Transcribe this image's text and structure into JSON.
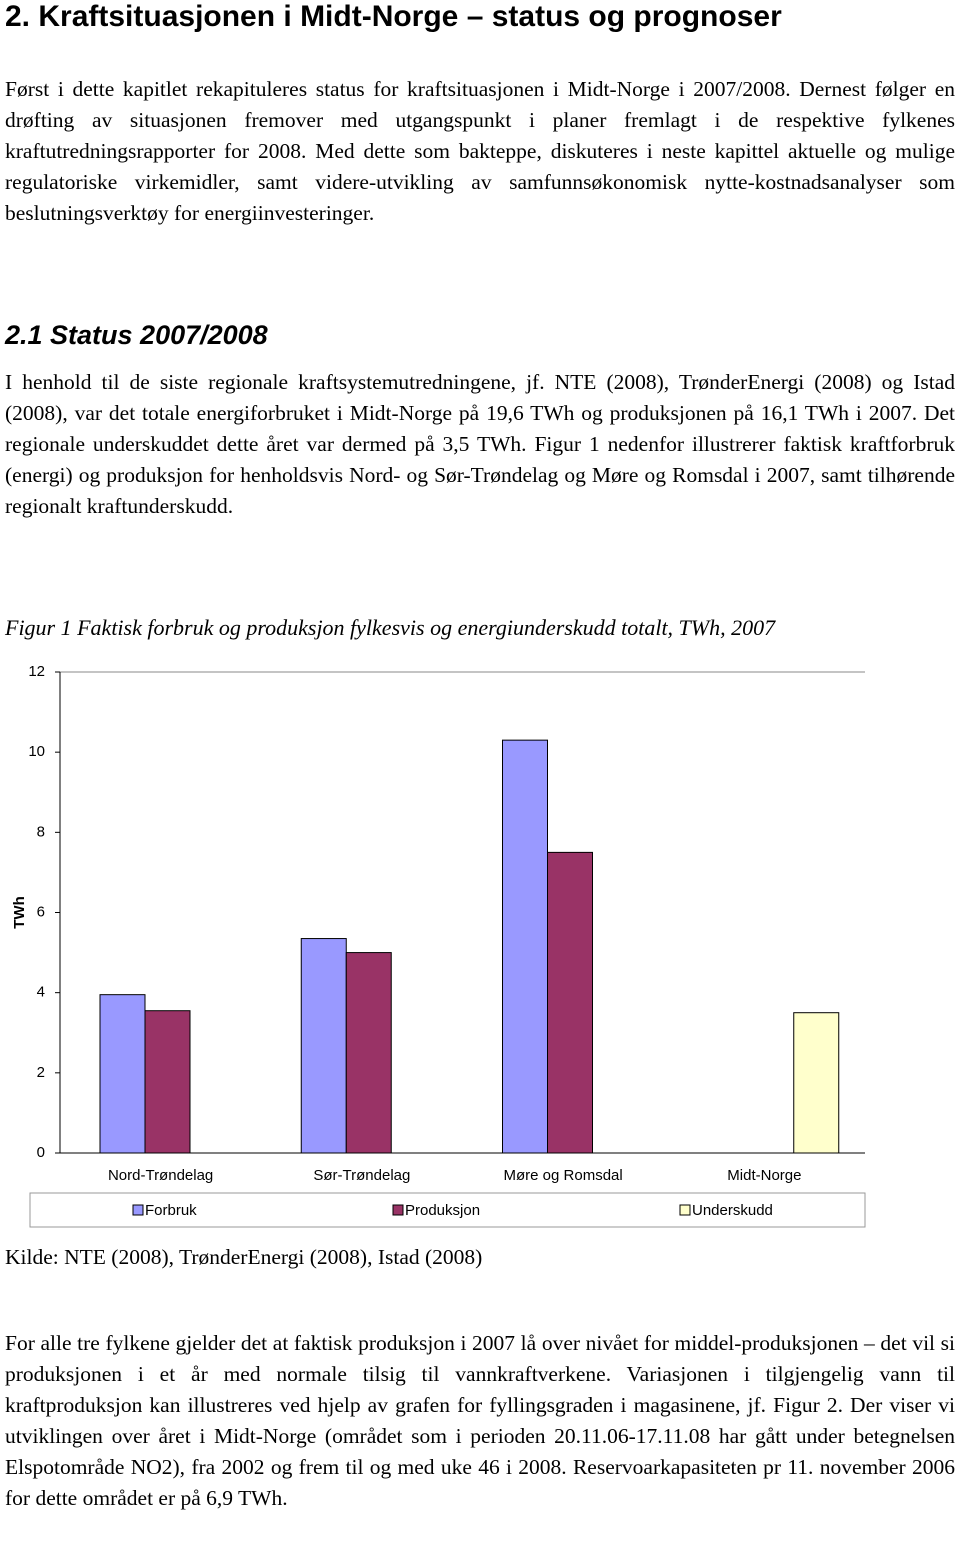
{
  "heading": "2. Kraftsituasjonen i Midt-Norge – status og prognoser",
  "intro": "Først i dette kapitlet rekapituleres status for kraftsituasjonen i Midt-Norge i 2007/2008. Dernest følger en drøfting av situasjonen fremover med utgangspunkt i planer fremlagt i de respektive fylkenes kraftutredningsrapporter for 2008. Med dette som bakteppe, diskuteres i neste kapittel aktuelle og mulige regulatoriske virkemidler, samt videre-utvikling av samfunnsøkonomisk nytte-kostnadsanalyser som beslutningsverktøy for energiinvesteringer.",
  "section_heading": "2.1 Status 2007/2008",
  "section_text": "I henhold til de siste regionale kraftsystemutredningene, jf. NTE (2008), TrønderEnergi (2008) og Istad (2008), var det totale energiforbruket i Midt-Norge på 19,6 TWh og produksjonen på 16,1 TWh i 2007. Det regionale underskuddet dette året var dermed på 3,5 TWh. Figur 1 nedenfor illustrerer faktisk kraftforbruk (energi) og produksjon for henholdsvis Nord- og Sør-Trøndelag og Møre og Romsdal i 2007, samt tilhørende regionalt kraftunderskudd.",
  "figure_caption": "Figur 1 Faktisk forbruk og produksjon fylkesvis og energiunderskudd totalt, TWh, 2007",
  "chart_data": {
    "type": "bar",
    "y_label": "TWh",
    "categories": [
      "Nord-Trøndelag",
      "Sør-Trøndelag",
      "Møre og Romsdal",
      "Midt-Norge"
    ],
    "series": [
      {
        "name": "Forbruk",
        "color": "#9999ff",
        "values": [
          3.95,
          5.35,
          10.3,
          null
        ]
      },
      {
        "name": "Produksjon",
        "color": "#993366",
        "values": [
          3.55,
          5.0,
          7.5,
          null
        ]
      },
      {
        "name": "Underskudd",
        "color": "#ffffcc",
        "values": [
          null,
          null,
          null,
          3.5
        ]
      }
    ],
    "ylim": [
      0,
      12
    ],
    "yticks": [
      0,
      2,
      4,
      6,
      8,
      10,
      12
    ],
    "grid": false,
    "legend": "bottom"
  },
  "source": "Kilde: NTE (2008), TrønderEnergi (2008), Istad (2008)",
  "closing": "For alle tre fylkene gjelder det at faktisk produksjon i 2007 lå over nivået for middel-produksjonen – det vil si produksjonen i et år med normale tilsig til vannkraftverkene. Variasjonen i tilgjengelig vann til kraftproduksjon kan illustreres ved hjelp av grafen for fyllingsgraden i magasinene, jf. Figur 2. Der viser vi utviklingen over året i Midt-Norge (området som i perioden 20.11.06-17.11.08 har gått under betegnelsen Elspotområde NO2), fra 2002 og frem til og med uke 46 i 2008. Reservoarkapasiteten pr 11. november 2006 for dette området er på 6,9 TWh."
}
